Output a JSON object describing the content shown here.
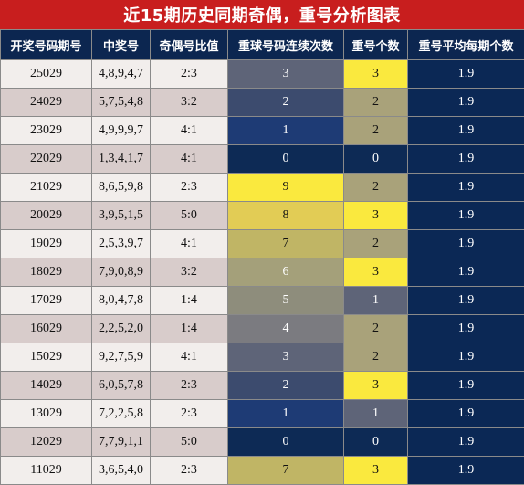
{
  "title": "近15期历史同期奇偶，重号分析图表",
  "headers": [
    "开奖号码期号",
    "中奖号",
    "奇偶号比值",
    "重球号码连续次数",
    "重号个数",
    "重号平均每期个数"
  ],
  "rows": [
    {
      "issue": "25029",
      "numbers": "4,8,9,4,7",
      "ratio": "2:3",
      "streak": "3",
      "repeat": "3",
      "avg": "1.9"
    },
    {
      "issue": "24029",
      "numbers": "5,7,5,4,8",
      "ratio": "3:2",
      "streak": "2",
      "repeat": "2",
      "avg": "1.9"
    },
    {
      "issue": "23029",
      "numbers": "4,9,9,9,7",
      "ratio": "4:1",
      "streak": "1",
      "repeat": "2",
      "avg": "1.9"
    },
    {
      "issue": "22029",
      "numbers": "1,3,4,1,7",
      "ratio": "4:1",
      "streak": "0",
      "repeat": "0",
      "avg": "1.9"
    },
    {
      "issue": "21029",
      "numbers": "8,6,5,9,8",
      "ratio": "2:3",
      "streak": "9",
      "repeat": "2",
      "avg": "1.9"
    },
    {
      "issue": "20029",
      "numbers": "3,9,5,1,5",
      "ratio": "5:0",
      "streak": "8",
      "repeat": "3",
      "avg": "1.9"
    },
    {
      "issue": "19029",
      "numbers": "2,5,3,9,7",
      "ratio": "4:1",
      "streak": "7",
      "repeat": "2",
      "avg": "1.9"
    },
    {
      "issue": "18029",
      "numbers": "7,9,0,8,9",
      "ratio": "3:2",
      "streak": "6",
      "repeat": "3",
      "avg": "1.9"
    },
    {
      "issue": "17029",
      "numbers": "8,0,4,7,8",
      "ratio": "1:4",
      "streak": "5",
      "repeat": "1",
      "avg": "1.9"
    },
    {
      "issue": "16029",
      "numbers": "2,2,5,2,0",
      "ratio": "1:4",
      "streak": "4",
      "repeat": "2",
      "avg": "1.9"
    },
    {
      "issue": "15029",
      "numbers": "9,2,7,5,9",
      "ratio": "4:1",
      "streak": "3",
      "repeat": "2",
      "avg": "1.9"
    },
    {
      "issue": "14029",
      "numbers": "6,0,5,7,8",
      "ratio": "2:3",
      "streak": "2",
      "repeat": "3",
      "avg": "1.9"
    },
    {
      "issue": "13029",
      "numbers": "7,2,2,5,8",
      "ratio": "2:3",
      "streak": "1",
      "repeat": "1",
      "avg": "1.9"
    },
    {
      "issue": "12029",
      "numbers": "7,7,9,1,1",
      "ratio": "5:0",
      "streak": "0",
      "repeat": "0",
      "avg": "1.9"
    },
    {
      "issue": "11029",
      "numbers": "3,6,5,4,0",
      "ratio": "2:3",
      "streak": "7",
      "repeat": "3",
      "avg": "1.9"
    }
  ],
  "colors": {
    "title_bg": "#c81e1e",
    "header_bg": "#0c2650",
    "row_light": "#f2eeec",
    "row_dark": "#d8cccb",
    "avg_bg": "#0b2855",
    "streak_scale": {
      "0": "#0d2a55",
      "1": "#1e3b75",
      "2": "#3c4b6e",
      "3": "#5e6478",
      "4": "#7b7b80",
      "5": "#8e8d7c",
      "6": "#a4a07a",
      "7": "#c0b565",
      "8": "#e2cc55",
      "9": "#fae93e"
    },
    "repeat_scale": {
      "0": "#0d2a55",
      "1": "#5e6478",
      "2": "#a9a27a",
      "3": "#fae93e"
    }
  }
}
